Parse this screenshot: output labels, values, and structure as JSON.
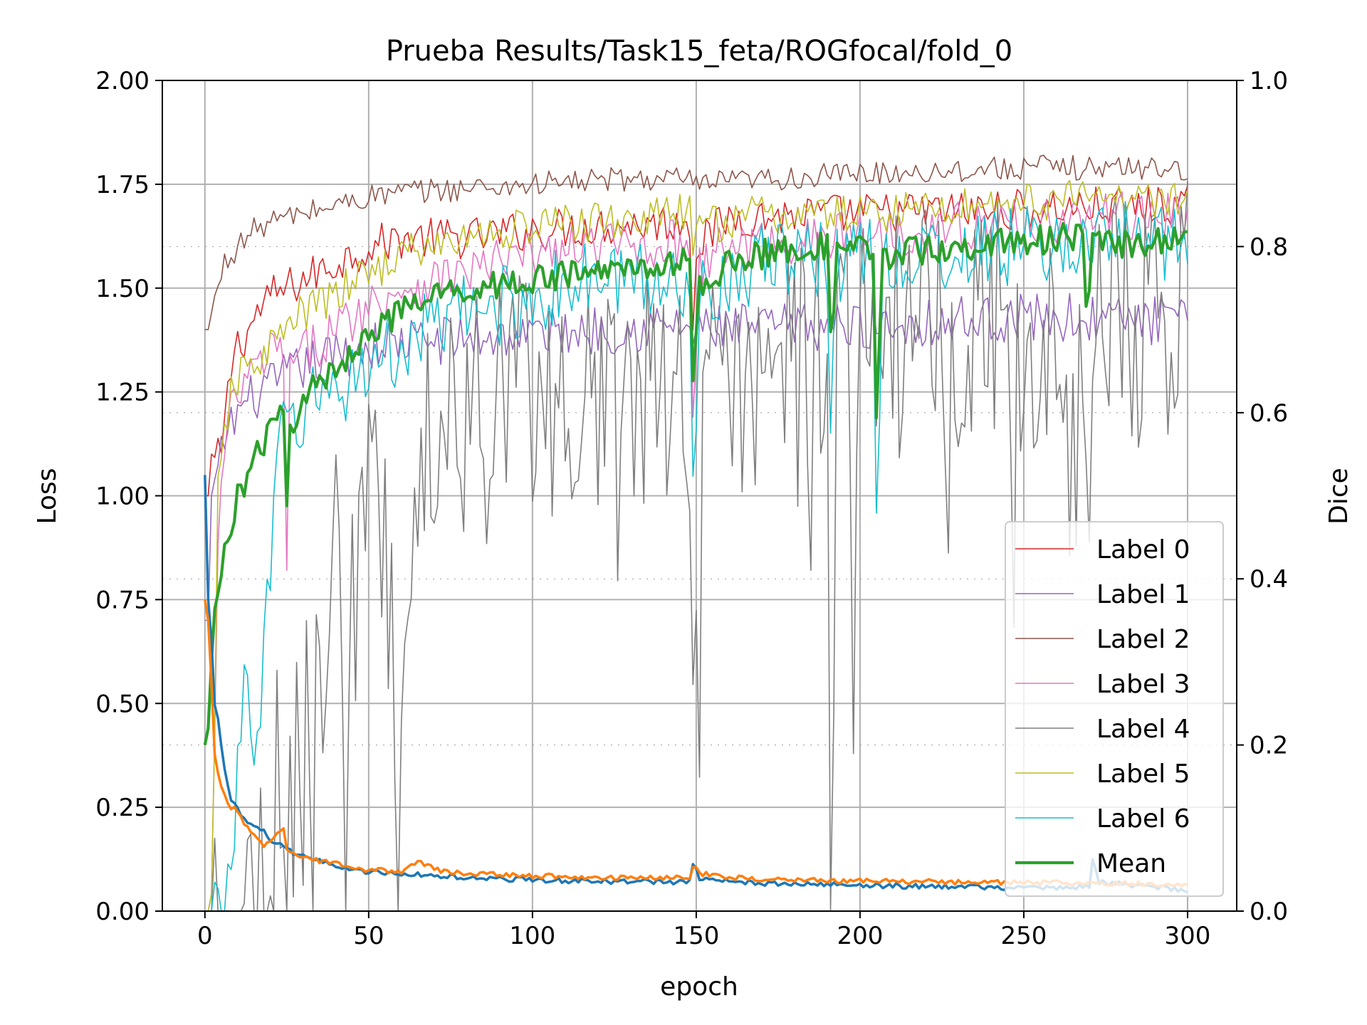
{
  "chart_data": {
    "type": "line",
    "title": "Prueba Results/Task15_feta/ROGfocal/fold_0",
    "xlabel": "epoch",
    "ylabel_left": "Loss",
    "ylabel_right": "Dice",
    "xlim": [
      -13,
      315
    ],
    "ylim_left": [
      0,
      2.0
    ],
    "ylim_right": [
      0,
      1.0
    ],
    "x_ticks": [
      0,
      50,
      100,
      150,
      200,
      250,
      300
    ],
    "y_ticks_left": [
      "0.00",
      "0.25",
      "0.50",
      "0.75",
      "1.00",
      "1.25",
      "1.50",
      "1.75",
      "2.00"
    ],
    "y_ticks_right": [
      "0.0",
      "0.2",
      "0.4",
      "0.6",
      "0.8",
      "1.0"
    ],
    "grid": true,
    "legend_position": "lower-right",
    "loss_series": [
      {
        "color": "#1f77b4",
        "axis": "left",
        "width": 3.5,
        "keypoints": [
          [
            0,
            1.05
          ],
          [
            1,
            0.75
          ],
          [
            2,
            0.65
          ],
          [
            3,
            0.5
          ],
          [
            4,
            0.46
          ],
          [
            5,
            0.4
          ],
          [
            6,
            0.34
          ],
          [
            7,
            0.3
          ],
          [
            8,
            0.27
          ],
          [
            10,
            0.25
          ],
          [
            12,
            0.22
          ],
          [
            15,
            0.2
          ],
          [
            18,
            0.19
          ],
          [
            20,
            0.17
          ],
          [
            25,
            0.15
          ],
          [
            30,
            0.13
          ],
          [
            35,
            0.12
          ],
          [
            40,
            0.11
          ],
          [
            45,
            0.1
          ],
          [
            50,
            0.095
          ],
          [
            60,
            0.09
          ],
          [
            70,
            0.085
          ],
          [
            80,
            0.08
          ],
          [
            100,
            0.075
          ],
          [
            120,
            0.072
          ],
          [
            148,
            0.07
          ],
          [
            149,
            0.115
          ],
          [
            151,
            0.08
          ],
          [
            160,
            0.07
          ],
          [
            180,
            0.065
          ],
          [
            200,
            0.062
          ],
          [
            230,
            0.058
          ],
          [
            260,
            0.055
          ],
          [
            270,
            0.06
          ],
          [
            271,
            0.12
          ],
          [
            273,
            0.07
          ],
          [
            300,
            0.05
          ]
        ]
      },
      {
        "color": "#ff7f0e",
        "axis": "left",
        "width": 3.5,
        "keypoints": [
          [
            0,
            0.75
          ],
          [
            1,
            0.7
          ],
          [
            2,
            0.55
          ],
          [
            3,
            0.38
          ],
          [
            4,
            0.33
          ],
          [
            6,
            0.28
          ],
          [
            8,
            0.25
          ],
          [
            10,
            0.24
          ],
          [
            12,
            0.21
          ],
          [
            15,
            0.18
          ],
          [
            18,
            0.16
          ],
          [
            20,
            0.17
          ],
          [
            24,
            0.2
          ],
          [
            25,
            0.15
          ],
          [
            30,
            0.13
          ],
          [
            35,
            0.12
          ],
          [
            40,
            0.115
          ],
          [
            45,
            0.1
          ],
          [
            50,
            0.1
          ],
          [
            60,
            0.095
          ],
          [
            66,
            0.12
          ],
          [
            70,
            0.1
          ],
          [
            80,
            0.09
          ],
          [
            100,
            0.085
          ],
          [
            120,
            0.082
          ],
          [
            148,
            0.08
          ],
          [
            149,
            0.11
          ],
          [
            152,
            0.09
          ],
          [
            160,
            0.08
          ],
          [
            180,
            0.075
          ],
          [
            200,
            0.072
          ],
          [
            230,
            0.07
          ],
          [
            260,
            0.068
          ],
          [
            300,
            0.065
          ]
        ]
      }
    ],
    "series": [
      {
        "name": "Label 0",
        "color": "#d62728",
        "width": 1.6,
        "keypoints": [
          [
            0,
            0.5
          ],
          [
            1,
            0.5
          ],
          [
            2,
            0.55
          ],
          [
            3,
            0.54
          ],
          [
            5,
            0.55
          ],
          [
            7,
            0.62
          ],
          [
            9,
            0.68
          ],
          [
            12,
            0.69
          ],
          [
            16,
            0.72
          ],
          [
            20,
            0.74
          ],
          [
            25,
            0.75
          ],
          [
            30,
            0.76
          ],
          [
            40,
            0.78
          ],
          [
            50,
            0.8
          ],
          [
            60,
            0.81
          ],
          [
            80,
            0.81
          ],
          [
            100,
            0.82
          ],
          [
            120,
            0.825
          ],
          [
            148,
            0.83
          ],
          [
            149,
            0.72
          ],
          [
            150,
            0.8
          ],
          [
            160,
            0.835
          ],
          [
            200,
            0.84
          ],
          [
            250,
            0.845
          ],
          [
            300,
            0.85
          ]
        ]
      },
      {
        "name": "Label 1",
        "color": "#9467bd",
        "width": 1.6,
        "keypoints": [
          [
            0,
            0.35
          ],
          [
            1,
            0.35
          ],
          [
            2,
            0.5
          ],
          [
            4,
            0.52
          ],
          [
            6,
            0.57
          ],
          [
            10,
            0.6
          ],
          [
            15,
            0.62
          ],
          [
            20,
            0.63
          ],
          [
            25,
            0.645
          ],
          [
            30,
            0.655
          ],
          [
            40,
            0.67
          ],
          [
            50,
            0.68
          ],
          [
            60,
            0.685
          ],
          [
            80,
            0.69
          ],
          [
            100,
            0.695
          ],
          [
            120,
            0.7
          ],
          [
            148,
            0.705
          ],
          [
            149,
            0.68
          ],
          [
            150,
            0.7
          ],
          [
            200,
            0.705
          ],
          [
            250,
            0.715
          ],
          [
            300,
            0.71
          ]
        ]
      },
      {
        "name": "Label 2",
        "color": "#8c564b",
        "width": 1.6,
        "keypoints": [
          [
            0,
            0.7
          ],
          [
            1,
            0.7
          ],
          [
            2,
            0.72
          ],
          [
            4,
            0.75
          ],
          [
            6,
            0.78
          ],
          [
            8,
            0.79
          ],
          [
            10,
            0.8
          ],
          [
            15,
            0.82
          ],
          [
            20,
            0.83
          ],
          [
            25,
            0.835
          ],
          [
            30,
            0.84
          ],
          [
            40,
            0.85
          ],
          [
            50,
            0.86
          ],
          [
            60,
            0.865
          ],
          [
            80,
            0.87
          ],
          [
            100,
            0.875
          ],
          [
            120,
            0.88
          ],
          [
            148,
            0.882
          ],
          [
            149,
            0.86
          ],
          [
            150,
            0.875
          ],
          [
            200,
            0.888
          ],
          [
            250,
            0.895
          ],
          [
            300,
            0.895
          ]
        ]
      },
      {
        "name": "Label 3",
        "color": "#e377c2",
        "width": 1.6,
        "keypoints": [
          [
            0,
            0
          ],
          [
            1,
            0
          ],
          [
            2,
            0.02
          ],
          [
            3,
            0.2
          ],
          [
            4,
            0.45
          ],
          [
            6,
            0.55
          ],
          [
            8,
            0.6
          ],
          [
            10,
            0.62
          ],
          [
            15,
            0.65
          ],
          [
            20,
            0.67
          ],
          [
            24,
            0.68
          ],
          [
            25,
            0.4
          ],
          [
            26,
            0.65
          ],
          [
            30,
            0.67
          ],
          [
            40,
            0.7
          ],
          [
            50,
            0.73
          ],
          [
            60,
            0.75
          ],
          [
            80,
            0.77
          ],
          [
            100,
            0.79
          ],
          [
            120,
            0.8
          ],
          [
            148,
            0.805
          ],
          [
            149,
            0.6
          ],
          [
            151,
            0.78
          ],
          [
            160,
            0.8
          ],
          [
            200,
            0.815
          ],
          [
            250,
            0.83
          ],
          [
            300,
            0.84
          ]
        ]
      },
      {
        "name": "Label 4",
        "color": "#7f7f7f",
        "width": 1.6,
        "keypoints": [
          [
            0,
            0
          ],
          [
            5,
            0
          ],
          [
            10,
            0
          ],
          [
            12,
            0.01
          ],
          [
            15,
            0
          ],
          [
            18,
            0
          ],
          [
            20,
            0.05
          ],
          [
            22,
            0.15
          ],
          [
            25,
            0.12
          ],
          [
            30,
            0.2
          ],
          [
            35,
            0.22
          ],
          [
            40,
            0.42
          ],
          [
            45,
            0.38
          ],
          [
            50,
            0.5
          ],
          [
            55,
            0.48
          ],
          [
            60,
            0.1
          ],
          [
            65,
            0.55
          ],
          [
            70,
            0.58
          ],
          [
            80,
            0.6
          ],
          [
            90,
            0.6
          ],
          [
            100,
            0.62
          ],
          [
            120,
            0.63
          ],
          [
            140,
            0.65
          ],
          [
            148,
            0.64
          ],
          [
            149,
            0.23
          ],
          [
            151,
            0.55
          ],
          [
            160,
            0.65
          ],
          [
            180,
            0.68
          ],
          [
            190,
            0.68
          ],
          [
            191,
            0.12
          ],
          [
            193,
            0.66
          ],
          [
            200,
            0.68
          ],
          [
            210,
            0.69
          ],
          [
            230,
            0.7
          ],
          [
            250,
            0.71
          ],
          [
            268,
            0.7
          ],
          [
            269,
            0.45
          ],
          [
            271,
            0.7
          ],
          [
            290,
            0.71
          ],
          [
            300,
            0.72
          ]
        ]
      },
      {
        "name": "Label 5",
        "color": "#bcbd22",
        "width": 1.6,
        "keypoints": [
          [
            0,
            0
          ],
          [
            1,
            0
          ],
          [
            2,
            0.02
          ],
          [
            3,
            0.2
          ],
          [
            4,
            0.5
          ],
          [
            6,
            0.58
          ],
          [
            8,
            0.62
          ],
          [
            10,
            0.64
          ],
          [
            15,
            0.66
          ],
          [
            20,
            0.68
          ],
          [
            25,
            0.7
          ],
          [
            30,
            0.72
          ],
          [
            40,
            0.74
          ],
          [
            50,
            0.77
          ],
          [
            60,
            0.79
          ],
          [
            80,
            0.81
          ],
          [
            100,
            0.825
          ],
          [
            120,
            0.83
          ],
          [
            148,
            0.84
          ],
          [
            149,
            0.8
          ],
          [
            151,
            0.82
          ],
          [
            160,
            0.835
          ],
          [
            200,
            0.84
          ],
          [
            250,
            0.855
          ],
          [
            300,
            0.86
          ]
        ]
      },
      {
        "name": "Label 6",
        "color": "#17becf",
        "width": 1.6,
        "keypoints": [
          [
            0,
            0
          ],
          [
            5,
            0
          ],
          [
            8,
            0.05
          ],
          [
            10,
            0.15
          ],
          [
            12,
            0.3
          ],
          [
            14,
            0.25
          ],
          [
            16,
            0.2
          ],
          [
            18,
            0.3
          ],
          [
            20,
            0.4
          ],
          [
            22,
            0.55
          ],
          [
            25,
            0.58
          ],
          [
            30,
            0.6
          ],
          [
            35,
            0.62
          ],
          [
            40,
            0.63
          ],
          [
            45,
            0.64
          ],
          [
            50,
            0.66
          ],
          [
            60,
            0.68
          ],
          [
            80,
            0.72
          ],
          [
            100,
            0.74
          ],
          [
            120,
            0.76
          ],
          [
            148,
            0.76
          ],
          [
            149,
            0.5
          ],
          [
            151,
            0.74
          ],
          [
            160,
            0.77
          ],
          [
            190,
            0.79
          ],
          [
            191,
            0.6
          ],
          [
            193,
            0.78
          ],
          [
            204,
            0.79
          ],
          [
            205,
            0.5
          ],
          [
            207,
            0.78
          ],
          [
            250,
            0.8
          ],
          [
            300,
            0.81
          ]
        ]
      },
      {
        "name": "Mean",
        "color": "#2ca02c",
        "width": 4.2,
        "keypoints": [
          [
            0,
            0.2
          ],
          [
            1,
            0.22
          ],
          [
            2,
            0.3
          ],
          [
            3,
            0.35
          ],
          [
            4,
            0.38
          ],
          [
            6,
            0.43
          ],
          [
            8,
            0.47
          ],
          [
            10,
            0.5
          ],
          [
            15,
            0.54
          ],
          [
            20,
            0.58
          ],
          [
            24,
            0.6
          ],
          [
            25,
            0.48
          ],
          [
            26,
            0.58
          ],
          [
            30,
            0.62
          ],
          [
            40,
            0.65
          ],
          [
            50,
            0.7
          ],
          [
            60,
            0.72
          ],
          [
            70,
            0.74
          ],
          [
            80,
            0.75
          ],
          [
            100,
            0.76
          ],
          [
            120,
            0.77
          ],
          [
            140,
            0.78
          ],
          [
            148,
            0.78
          ],
          [
            149,
            0.65
          ],
          [
            151,
            0.75
          ],
          [
            160,
            0.78
          ],
          [
            180,
            0.8
          ],
          [
            190,
            0.8
          ],
          [
            191,
            0.68
          ],
          [
            193,
            0.79
          ],
          [
            204,
            0.8
          ],
          [
            205,
            0.58
          ],
          [
            207,
            0.79
          ],
          [
            230,
            0.8
          ],
          [
            260,
            0.81
          ],
          [
            268,
            0.81
          ],
          [
            269,
            0.72
          ],
          [
            271,
            0.8
          ],
          [
            300,
            0.81
          ]
        ]
      }
    ]
  }
}
